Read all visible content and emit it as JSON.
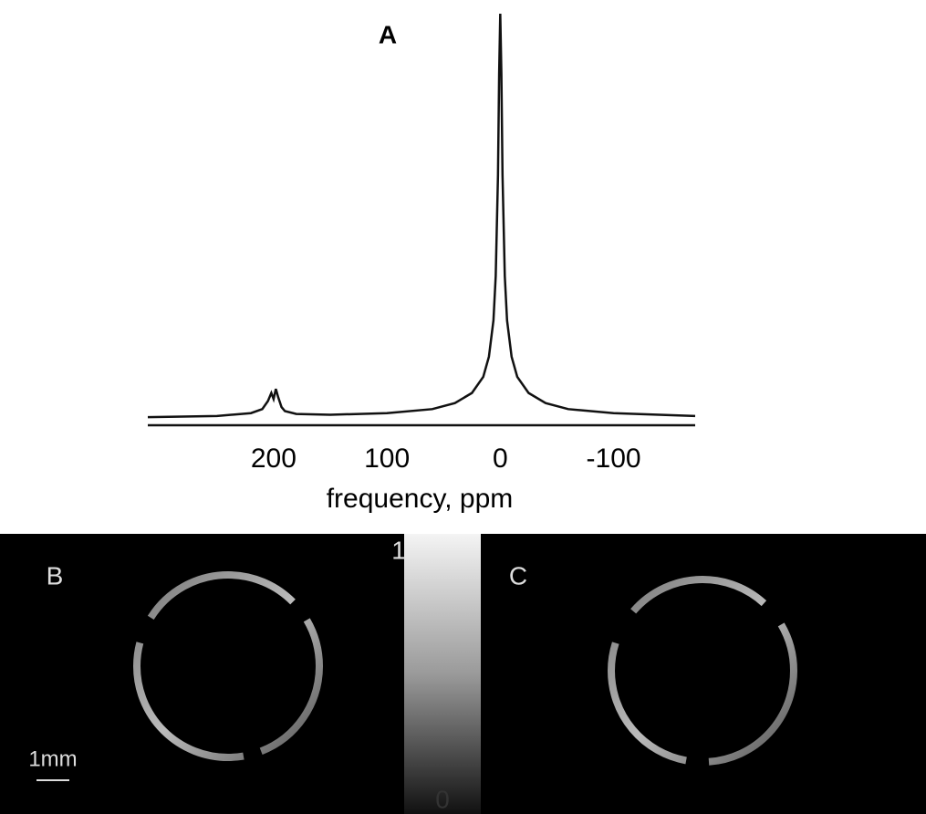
{
  "chart_data": {
    "type": "line",
    "title": "A",
    "x_label": "frequency, ppm",
    "x": [
      311,
      250,
      220,
      210,
      205,
      202,
      200,
      198,
      196,
      193,
      190,
      180,
      150,
      100,
      60,
      40,
      25,
      15,
      10,
      6,
      4,
      2,
      1,
      0,
      -1,
      -2,
      -4,
      -6,
      -10,
      -15,
      -25,
      -40,
      -60,
      -100,
      -172
    ],
    "values": [
      0,
      0.3,
      1,
      2,
      4,
      6,
      4.5,
      7,
      5,
      2.5,
      1.5,
      0.8,
      0.6,
      1,
      2,
      3.5,
      6,
      10,
      15,
      24,
      35,
      60,
      85,
      100,
      85,
      60,
      35,
      24,
      15,
      10,
      6,
      3.5,
      2,
      1,
      0.3
    ],
    "color": "#111111",
    "xlim": [
      311,
      -172
    ],
    "xticks": [
      200,
      100,
      0,
      -100
    ],
    "ylim": [
      -2,
      100
    ]
  },
  "images": {
    "panels": [
      {
        "label": "B"
      },
      {
        "label": "C"
      }
    ],
    "scale_bar": "1mm",
    "colorbar": {
      "lim": [
        0,
        1
      ],
      "ticks": [
        0,
        1
      ]
    }
  }
}
